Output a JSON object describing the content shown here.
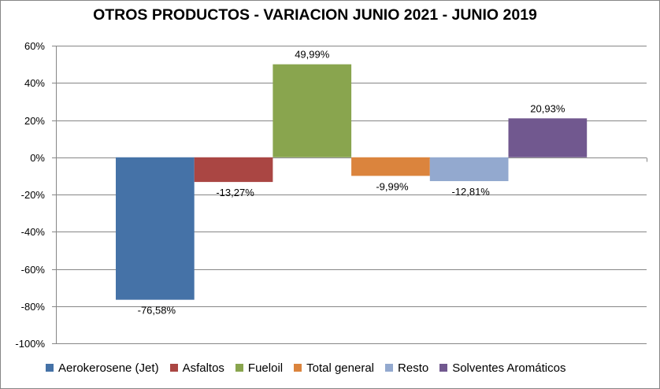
{
  "chart_data": {
    "type": "bar",
    "title": "OTROS PRODUCTOS - VARIACION JUNIO 2021 - JUNIO 2019",
    "xlabel": "",
    "ylabel": "",
    "ylim": [
      -100,
      60
    ],
    "ytick_step": 20,
    "yticks": [
      "60%",
      "40%",
      "20%",
      "0%",
      "-20%",
      "-40%",
      "-60%",
      "-80%",
      "-100%"
    ],
    "grid": true,
    "legend_position": "bottom",
    "series": [
      {
        "name": "Aerokerosene (Jet)",
        "value": -76.58,
        "label": "-76,58%",
        "color": "#4572A7"
      },
      {
        "name": "Asfaltos",
        "value": -13.27,
        "label": "-13,27%",
        "color": "#AA4643"
      },
      {
        "name": "Fueloil",
        "value": 49.99,
        "label": "49,99%",
        "color": "#89A54E"
      },
      {
        "name": "Total general",
        "value": -9.99,
        "label": "-9,99%",
        "color": "#DB843D"
      },
      {
        "name": "Resto",
        "value": -12.81,
        "label": "-12,81%",
        "color": "#93A9CF"
      },
      {
        "name": "Solventes Aromáticos",
        "value": 20.93,
        "label": "20,93%",
        "color": "#71588F"
      }
    ]
  }
}
